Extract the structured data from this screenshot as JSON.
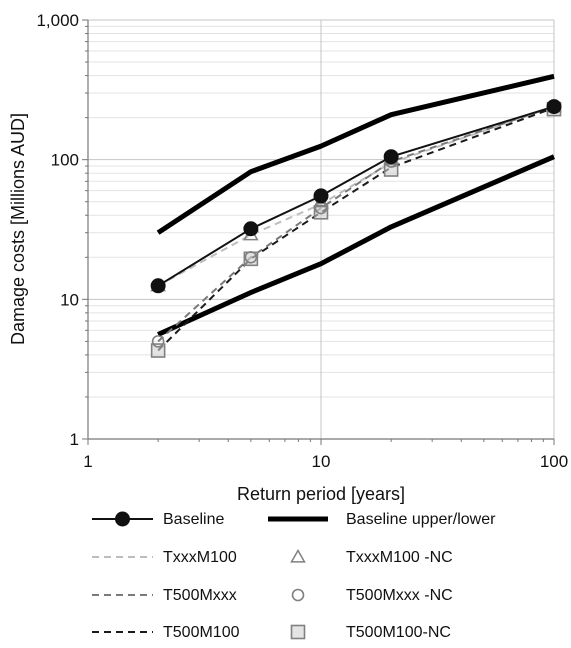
{
  "chart_data": {
    "type": "line",
    "x_scale": "log",
    "y_scale": "log",
    "xlim": [
      1,
      100
    ],
    "ylim": [
      1,
      1000
    ],
    "xlabel": "Return period [years]",
    "ylabel": "Damage costs [Millions AUD]",
    "x_tick_labels": [
      "1",
      "10",
      "100"
    ],
    "y_tick_labels": [
      "1",
      "10",
      "100",
      "1,000"
    ],
    "grid": "horizontal major and minor gridlines",
    "legend_position": "bottom",
    "series": [
      {
        "name": "Baseline",
        "style": "solid",
        "color": "#111111",
        "width": 2,
        "marker": "filled-circle",
        "x": [
          2,
          5,
          10,
          20,
          100
        ],
        "y": [
          12.5,
          32,
          55,
          105,
          240
        ]
      },
      {
        "name": "Baseline upper/lower",
        "style": "solid",
        "color": "#000000",
        "width": 5,
        "marker": "none",
        "x": [
          2,
          5,
          10,
          20,
          100
        ],
        "y": [
          30,
          82,
          125,
          210,
          395
        ]
      },
      {
        "name": "",
        "style": "solid",
        "color": "#000000",
        "width": 5,
        "marker": "none",
        "x": [
          2,
          5,
          10,
          20,
          100
        ],
        "y": [
          5.6,
          11.2,
          18,
          33,
          105
        ]
      },
      {
        "name": "TxxxM100",
        "style": "dashed",
        "color": "#bdbdbd",
        "width": 2,
        "marker": "none",
        "x": [
          2,
          5,
          10,
          20,
          100
        ],
        "y": [
          12.5,
          29,
          48,
          95,
          240
        ]
      },
      {
        "name": "T500Mxxx",
        "style": "dashed",
        "color": "#7a7a7a",
        "width": 2,
        "marker": "none",
        "x": [
          2,
          5,
          10,
          20,
          100
        ],
        "y": [
          5,
          20,
          45,
          97,
          240
        ]
      },
      {
        "name": "T500M100",
        "style": "dashed",
        "color": "#1a1a1a",
        "width": 2,
        "marker": "none",
        "x": [
          2,
          5,
          10,
          20,
          100
        ],
        "y": [
          4.3,
          19.5,
          42,
          88,
          235
        ]
      },
      {
        "name": "TxxxM100 -NC",
        "style": "none",
        "color": "#808080",
        "marker": "triangle",
        "x": [
          2,
          5,
          10,
          20,
          100
        ],
        "y": [
          12.5,
          29,
          50,
          100,
          240
        ]
      },
      {
        "name": "T500Mxxx -NC",
        "style": "none",
        "color": "#808080",
        "marker": "circle",
        "x": [
          2,
          5,
          10,
          20,
          100
        ],
        "y": [
          5,
          20,
          45,
          97,
          240
        ]
      },
      {
        "name": "T500M100-NC",
        "style": "none",
        "color": "#808080",
        "marker": "square",
        "x": [
          2,
          5,
          10,
          20,
          100
        ],
        "y": [
          4.3,
          19.5,
          42,
          85,
          230
        ]
      }
    ]
  }
}
